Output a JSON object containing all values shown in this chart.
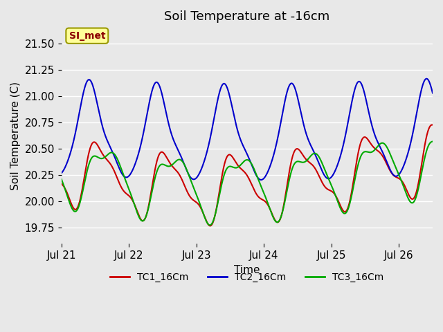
{
  "title": "Soil Temperature at -16cm",
  "xlabel": "Time",
  "ylabel": "Soil Temperature (C)",
  "ylim": [
    19.6,
    21.65
  ],
  "xlim": [
    0,
    5.5
  ],
  "annotation_text": "SI_met",
  "annotation_bg": "#FFFF99",
  "annotation_border": "#999900",
  "annotation_text_color": "#8B0000",
  "legend_labels": [
    "TC1_16Cm",
    "TC2_16Cm",
    "TC3_16Cm"
  ],
  "line_colors": [
    "#CC0000",
    "#0000CC",
    "#00AA00"
  ],
  "bg_color": "#E8E8E8",
  "plot_bg": "#E8E8E8",
  "grid_color": "#FFFFFF",
  "tick_labels": [
    "Jul 21",
    "Jul 22",
    "Jul 23",
    "Jul 24",
    "Jul 25",
    "Jul 26"
  ],
  "tick_positions": [
    0,
    1,
    2,
    3,
    4,
    5
  ],
  "title_fontsize": 13,
  "axis_fontsize": 11,
  "legend_fontsize": 10
}
